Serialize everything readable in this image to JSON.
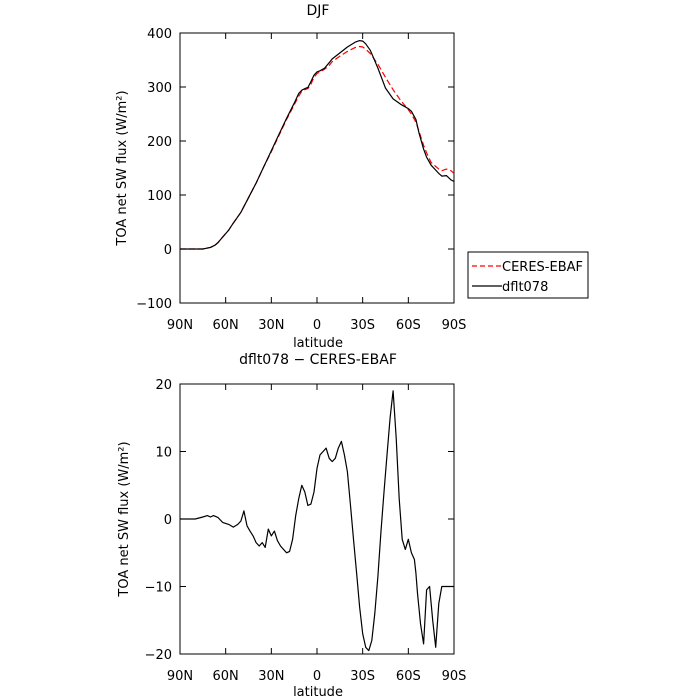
{
  "chart_data": [
    {
      "type": "line",
      "title": "DJF",
      "xlabel": "latitude",
      "ylabel": "TOA net SW flux (W/m²)",
      "xlim": [
        -90,
        90
      ],
      "ylim": [
        -100,
        400
      ],
      "x_ticks": [
        -90,
        -60,
        -30,
        0,
        30,
        60,
        90
      ],
      "x_tick_labels": [
        "90N",
        "60N",
        "30N",
        "0",
        "30S",
        "60S",
        "90S"
      ],
      "y_ticks": [
        -100,
        0,
        100,
        200,
        300,
        400
      ],
      "y_tick_labels": [
        "−100",
        "0",
        "100",
        "200",
        "300",
        "400"
      ],
      "grid": false,
      "legend_position": "outside-right",
      "series": [
        {
          "name": "CERES-EBAF",
          "color": "#ff0000",
          "dash": "dashed",
          "x": [
            -90,
            -80,
            -75,
            -70,
            -67,
            -65,
            -62,
            -58,
            -55,
            -50,
            -45,
            -40,
            -35,
            -30,
            -25,
            -20,
            -15,
            -12,
            -10,
            -8,
            -6,
            -4,
            -2,
            0,
            2,
            5,
            8,
            10,
            15,
            20,
            25,
            28,
            30,
            32,
            35,
            40,
            45,
            50,
            55,
            60,
            62,
            65,
            67,
            70,
            72,
            75,
            80,
            82,
            85,
            88,
            90
          ],
          "y": [
            0,
            0,
            0,
            3,
            7,
            12,
            22,
            35,
            48,
            68,
            95,
            122,
            152,
            180,
            210,
            240,
            267,
            283,
            292,
            295,
            297,
            305,
            318,
            325,
            328,
            333,
            340,
            347,
            357,
            366,
            373,
            375,
            374,
            370,
            362,
            342,
            318,
            295,
            275,
            258,
            250,
            235,
            218,
            192,
            178,
            160,
            148,
            145,
            148,
            145,
            140
          ]
        },
        {
          "name": "dflt078",
          "color": "#000000",
          "dash": "solid",
          "x": [
            -90,
            -80,
            -75,
            -70,
            -67,
            -65,
            -62,
            -58,
            -55,
            -50,
            -45,
            -40,
            -35,
            -30,
            -25,
            -20,
            -15,
            -12,
            -10,
            -8,
            -6,
            -4,
            -2,
            0,
            2,
            5,
            8,
            10,
            15,
            20,
            25,
            28,
            30,
            32,
            35,
            40,
            45,
            50,
            55,
            60,
            62,
            65,
            67,
            70,
            72,
            75,
            80,
            82,
            85,
            88,
            90
          ],
          "y": [
            0,
            0,
            0,
            3,
            7,
            12,
            22,
            35,
            48,
            68,
            95,
            122,
            152,
            182,
            212,
            242,
            270,
            288,
            294,
            297,
            299,
            310,
            322,
            328,
            330,
            335,
            345,
            352,
            363,
            374,
            383,
            386,
            385,
            380,
            368,
            335,
            298,
            278,
            268,
            260,
            255,
            240,
            215,
            185,
            170,
            155,
            140,
            135,
            136,
            128,
            125
          ]
        }
      ]
    },
    {
      "type": "line",
      "title": "dflt078 − CERES-EBAF",
      "xlabel": "latitude",
      "ylabel": "TOA net SW flux (W/m²)",
      "xlim": [
        -90,
        90
      ],
      "ylim": [
        -20,
        20
      ],
      "x_ticks": [
        -90,
        -60,
        -30,
        0,
        30,
        60,
        90
      ],
      "x_tick_labels": [
        "90N",
        "60N",
        "30N",
        "0",
        "30S",
        "60S",
        "90S"
      ],
      "y_ticks": [
        -20,
        -10,
        0,
        10,
        20
      ],
      "y_tick_labels": [
        "−20",
        "−10",
        "0",
        "10",
        "20"
      ],
      "grid": false,
      "series": [
        {
          "name": "",
          "color": "#000000",
          "dash": "solid",
          "x": [
            -90,
            -80,
            -75,
            -72,
            -70,
            -68,
            -65,
            -62,
            -58,
            -55,
            -52,
            -50,
            -48,
            -46,
            -44,
            -42,
            -40,
            -38,
            -36,
            -34,
            -32,
            -30,
            -28,
            -26,
            -24,
            -22,
            -20,
            -18,
            -16,
            -14,
            -12,
            -10,
            -8,
            -6,
            -4,
            -2,
            0,
            2,
            4,
            6,
            8,
            10,
            12,
            14,
            16,
            18,
            20,
            22,
            24,
            26,
            28,
            30,
            32,
            34,
            36,
            38,
            40,
            42,
            44,
            46,
            48,
            50,
            52,
            54,
            56,
            58,
            60,
            62,
            64,
            65,
            66,
            68,
            70,
            72,
            74,
            76,
            78,
            80,
            82,
            84,
            86,
            88,
            90
          ],
          "y": [
            0,
            0,
            0.3,
            0.5,
            0.3,
            0.5,
            0.2,
            -0.5,
            -0.8,
            -1.2,
            -0.8,
            -0.3,
            1.2,
            -1.0,
            -1.8,
            -2.5,
            -3.5,
            -4.0,
            -3.5,
            -4.2,
            -1.5,
            -2.5,
            -1.8,
            -3.2,
            -4.0,
            -4.5,
            -5.0,
            -4.8,
            -3.0,
            0.5,
            3.0,
            5.0,
            4.0,
            2.0,
            2.2,
            4.0,
            7.5,
            9.5,
            10.0,
            10.5,
            9.0,
            8.5,
            9.0,
            10.5,
            11.5,
            9.5,
            7.0,
            2.0,
            -3.0,
            -8.0,
            -13.0,
            -17.0,
            -19.0,
            -19.5,
            -18.0,
            -14.0,
            -8.5,
            -2.0,
            4.0,
            9.5,
            15.0,
            19.0,
            12.0,
            3.0,
            -3.0,
            -4.5,
            -3.0,
            -5.0,
            -6.0,
            -8.0,
            -11.0,
            -15.5,
            -18.5,
            -10.5,
            -10.0,
            -15.0,
            -19.0,
            -12.5,
            -10.0,
            -10.0,
            -10.0,
            -10.0,
            -10.0
          ]
        }
      ]
    }
  ]
}
